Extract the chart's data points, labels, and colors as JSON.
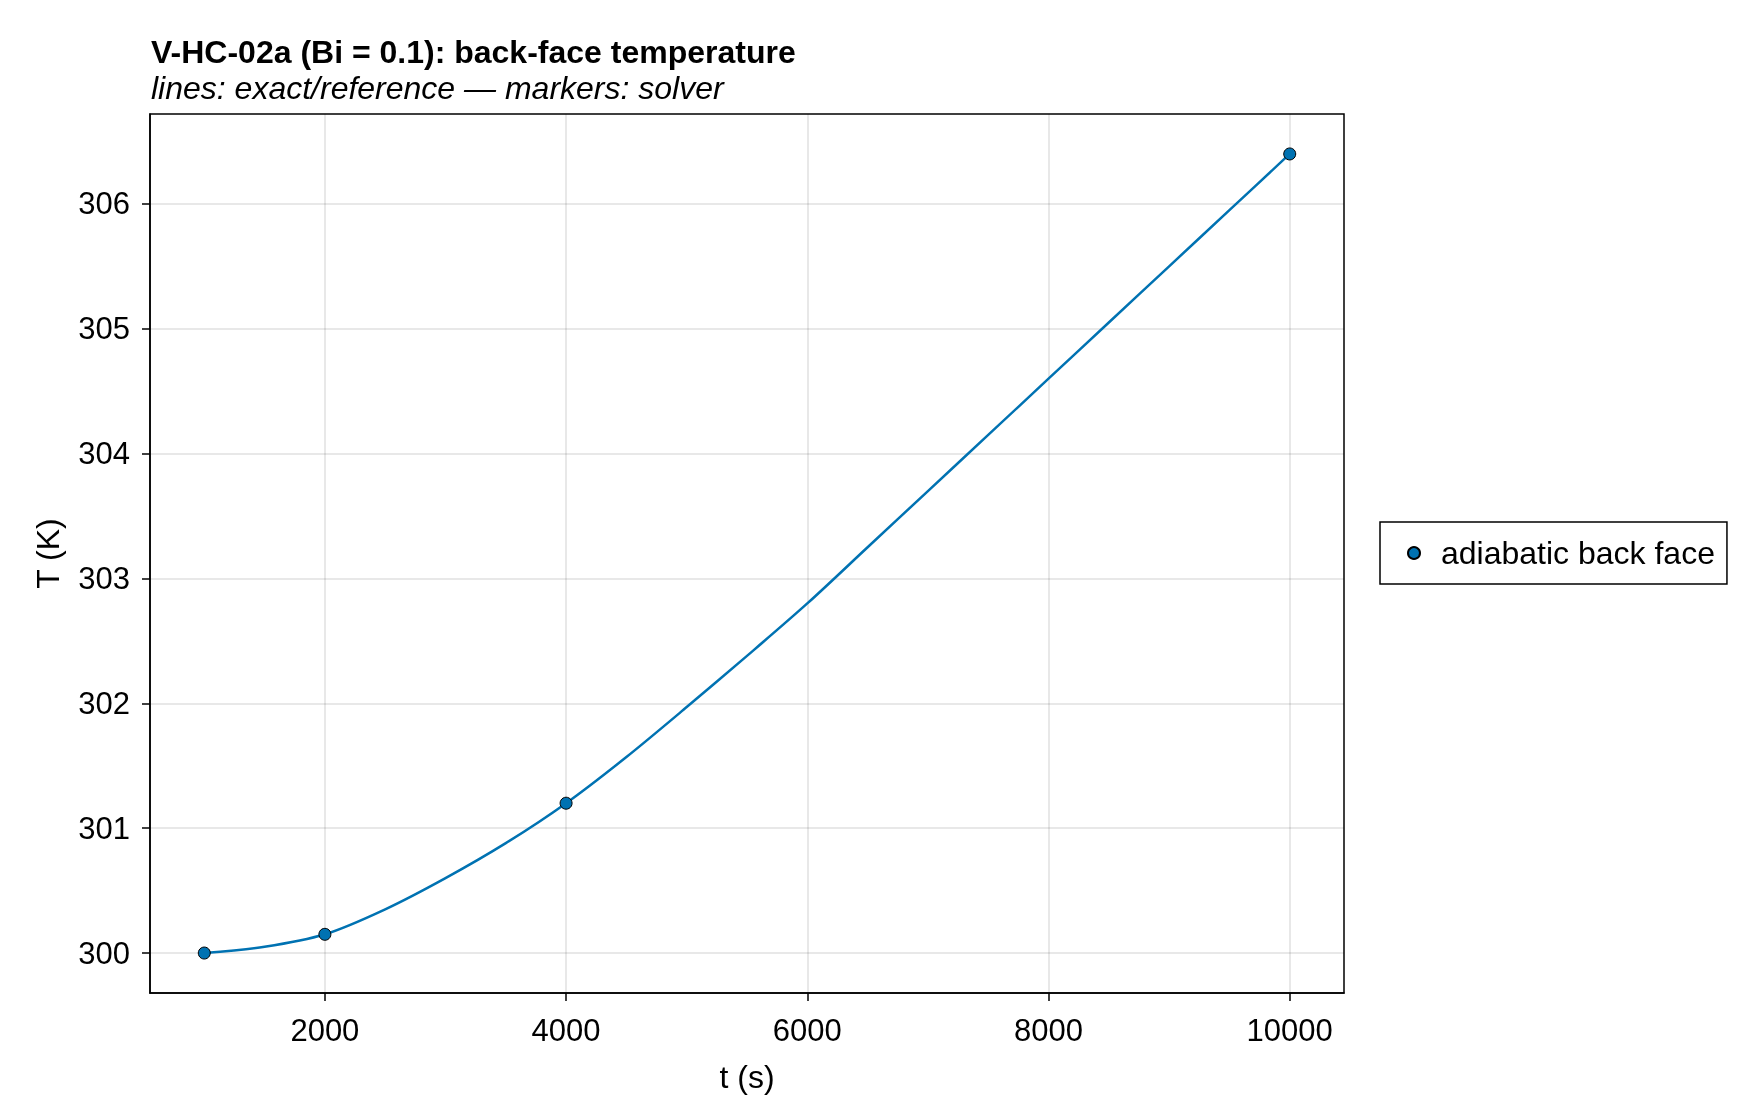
{
  "chart_data": {
    "type": "line",
    "title": "V-HC-02a (Bi = 0.1): back-face temperature",
    "subtitle": "lines: exact/reference — markers: solver",
    "xlabel": "t (s)",
    "ylabel": "T (K)",
    "series": [
      {
        "color": "#0072b2",
        "marker": "none",
        "x": [
          1000,
          1500,
          2000,
          2500,
          3000,
          3500,
          4000,
          4500,
          5000,
          5500,
          6000,
          6500,
          7000,
          7500,
          8000,
          8500,
          9000,
          9500,
          10000
        ],
        "values": [
          300.0,
          300.05,
          300.15,
          300.35,
          300.6,
          300.88,
          301.2,
          301.57,
          301.97,
          302.38,
          302.8,
          303.25,
          303.7,
          304.15,
          304.6,
          305.05,
          305.5,
          305.95,
          306.4
        ]
      },
      {
        "type": "scatter",
        "name": "adiabatic back face",
        "color": "#0072b2",
        "marker": "circle",
        "x": [
          1000,
          2000,
          4000,
          10000
        ],
        "values": [
          300.0,
          300.15,
          301.2,
          306.4
        ]
      }
    ],
    "xlim": [
      550,
      10450
    ],
    "ylim": [
      299.68,
      306.72
    ],
    "xticks": [
      2000,
      4000,
      6000,
      8000,
      10000
    ],
    "yticks": [
      300,
      301,
      302,
      303,
      304,
      305,
      306
    ],
    "grid": true,
    "legend": "right"
  }
}
